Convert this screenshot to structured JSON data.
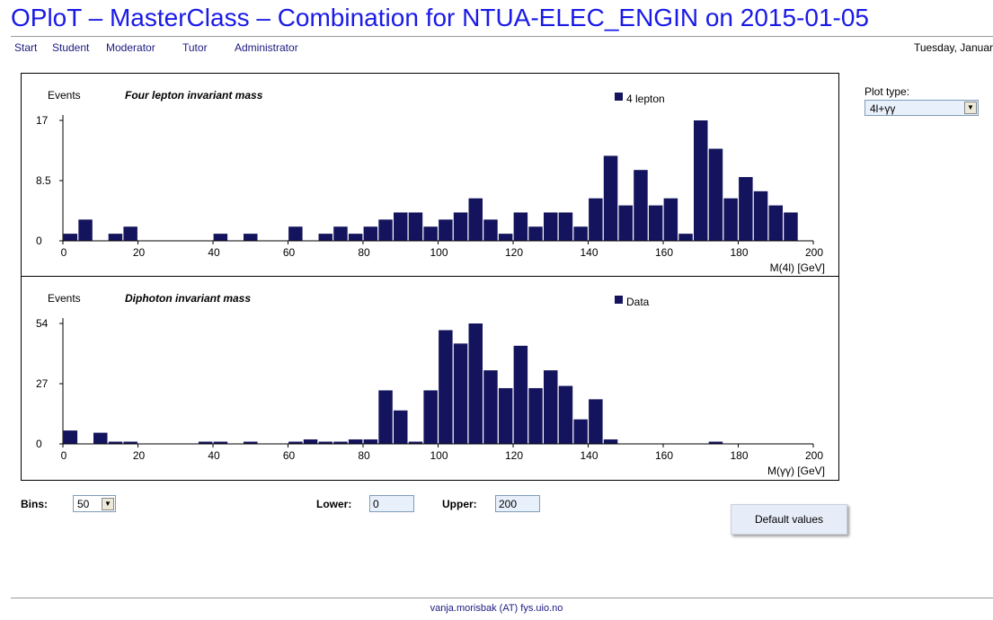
{
  "page": {
    "title": "OPloT – MasterClass – Combination for NTUA-ELEC_ENGIN on 2015-01-05",
    "date": "Tuesday, Januar",
    "footer": "vanja.morisbak (AT) fys.uio.no"
  },
  "nav": [
    "Start",
    "Student",
    "Moderator",
    "Tutor",
    "Administrator"
  ],
  "controls": {
    "plot_type_label": "Plot type:",
    "plot_type_value": "4l+γγ",
    "bins_label": "Bins:",
    "bins_value": "50",
    "lower_label": "Lower:",
    "lower_value": "0",
    "upper_label": "Upper:",
    "upper_value": "200",
    "default_button": "Default values"
  },
  "colors": {
    "bar": "#14145e",
    "title": "#1a1ae6",
    "link": "#1a1a80"
  },
  "chart_data": [
    {
      "type": "bar",
      "title": "Four lepton invariant mass",
      "ylabel": "Events",
      "xlabel": "M(4l) [GeV]",
      "legend": "4 lepton",
      "xlim": [
        0,
        200
      ],
      "ylim": [
        0,
        17
      ],
      "yticks": [
        "0",
        "8.5",
        "17"
      ],
      "xticks": [
        "0",
        "20",
        "40",
        "60",
        "80",
        "100",
        "120",
        "140",
        "160",
        "180",
        "200"
      ],
      "bin_width": 4,
      "values": [
        1,
        3,
        0,
        1,
        2,
        0,
        0,
        0,
        0,
        0,
        1,
        0,
        1,
        0,
        0,
        2,
        0,
        1,
        2,
        1,
        2,
        3,
        4,
        4,
        2,
        3,
        4,
        6,
        3,
        1,
        4,
        2,
        4,
        4,
        2,
        6,
        12,
        5,
        10,
        5,
        6,
        1,
        17,
        13,
        6,
        9,
        7,
        5,
        4,
        0
      ]
    },
    {
      "type": "bar",
      "title": "Diphoton invariant mass",
      "ylabel": "Events",
      "xlabel": "M(γγ) [GeV]",
      "legend": "Data",
      "xlim": [
        0,
        200
      ],
      "ylim": [
        0,
        54
      ],
      "yticks": [
        "0",
        "27",
        "54"
      ],
      "xticks": [
        "0",
        "20",
        "40",
        "60",
        "80",
        "100",
        "120",
        "140",
        "160",
        "180",
        "200"
      ],
      "bin_width": 4,
      "values": [
        6,
        0,
        5,
        1,
        1,
        0,
        0,
        0,
        0,
        1,
        1,
        0,
        1,
        0,
        0,
        1,
        2,
        1,
        1,
        2,
        2,
        24,
        15,
        1,
        24,
        51,
        45,
        54,
        33,
        25,
        44,
        25,
        33,
        26,
        11,
        20,
        2,
        0,
        0,
        0,
        0,
        0,
        0,
        1,
        0,
        0,
        0,
        0,
        0,
        0
      ]
    }
  ]
}
